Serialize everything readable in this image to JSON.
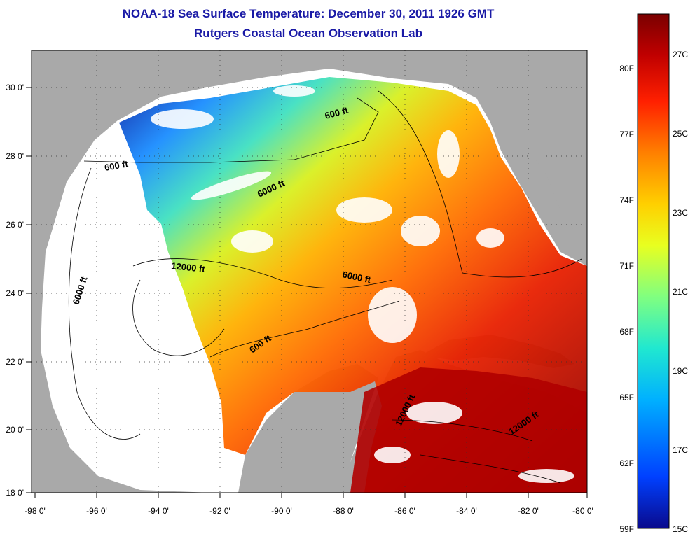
{
  "title": "NOAA-18 Sea Surface Temperature:  December 30, 2011 1926 GMT",
  "subtitle": "Rutgers Coastal Ocean Observation Lab",
  "map": {
    "longitude_ticks": [
      "-98 0'",
      "-96 0'",
      "-94 0'",
      "-92 0'",
      "-90 0'",
      "-88 0'",
      "-86 0'",
      "-84 0'",
      "-82 0'",
      "-80 0'"
    ],
    "latitude_ticks": [
      "30 0'",
      "28 0'",
      "26 0'",
      "24 0'",
      "22 0'",
      "20 0'",
      "18 0'"
    ],
    "lon_range": [
      -98,
      -80
    ],
    "lat_range": [
      18,
      31
    ],
    "grid": "dotted",
    "colors": {
      "land": "#a9a9a9",
      "no_data": "#ffffff",
      "contour": "#000000"
    },
    "contour_labels": [
      "600 ft",
      "600 ft",
      "6000 ft",
      "6000 ft",
      "12000 ft",
      "6000 ft",
      "600 ft",
      "12000 ft",
      "12000 ft"
    ]
  },
  "colorbar": {
    "range_c": [
      15,
      28
    ],
    "celsius_labels": [
      "27C",
      "25C",
      "23C",
      "21C",
      "19C",
      "17C",
      "15C"
    ],
    "fahrenheit_labels": [
      "80F",
      "77F",
      "74F",
      "71F",
      "68F",
      "65F",
      "62F",
      "59F"
    ],
    "gradient": [
      "#0a0a8c",
      "#0040ff",
      "#00b0ff",
      "#20e8d0",
      "#80ff80",
      "#e8ff20",
      "#ffd000",
      "#ff8000",
      "#ff2000",
      "#c00000",
      "#7a0000"
    ]
  }
}
